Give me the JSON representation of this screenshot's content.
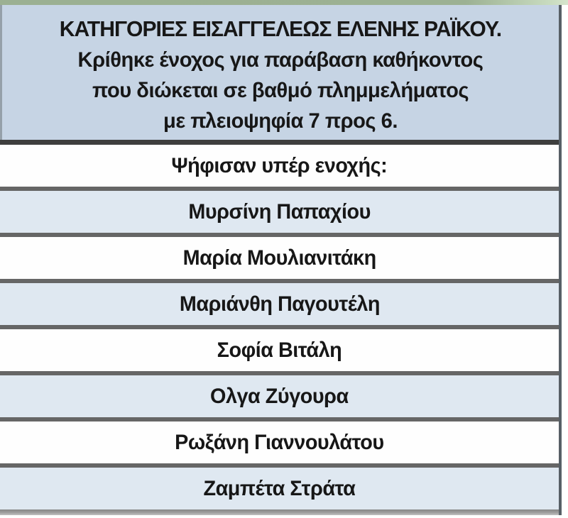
{
  "chart_data": {
    "type": "table",
    "title": "ΚΑΤΗΓΟΡΙΕΣ ΕΙΣΑΓΓΕΛΕΩΣ ΕΛΕΝΗΣ ΡΑΪΚΟΥ.",
    "subtitle_lines": [
      "Κρίθηκε ένοχος για παράβαση καθήκοντος",
      "που διώκεται σε βαθμό πλημμελήματος",
      "με πλειοψηφία 7 προς 6."
    ],
    "rows": [
      "Ψήφισαν υπέρ ενοχής:",
      "Μυρσίνη Παπαχίου",
      "Μαρία Μουλιανιτάκη",
      "Μαριάνθη Παγουτέλη",
      "Σοφία Βιτάλη",
      "Ολγα Ζύγουρα",
      "Ρωξάνη Γιαννουλάτου",
      "Ζαμπέτα Στράτα"
    ],
    "layout_hints": {
      "row_striping": "white / light-blue alternating starting white",
      "alignment": "center",
      "grid": "thick gray horizontal separators"
    }
  },
  "colors": {
    "header_bg": "#c6d4e4",
    "row_bg": "#fefefe",
    "row_alt_bg": "#dfe8f1",
    "separator": "#666666",
    "header_separator": "#3e3e3e",
    "right_border": "#575f66",
    "top_strip_green": "#9cb193",
    "bottom_bar": "#9e9e9e",
    "text": "#171717"
  }
}
